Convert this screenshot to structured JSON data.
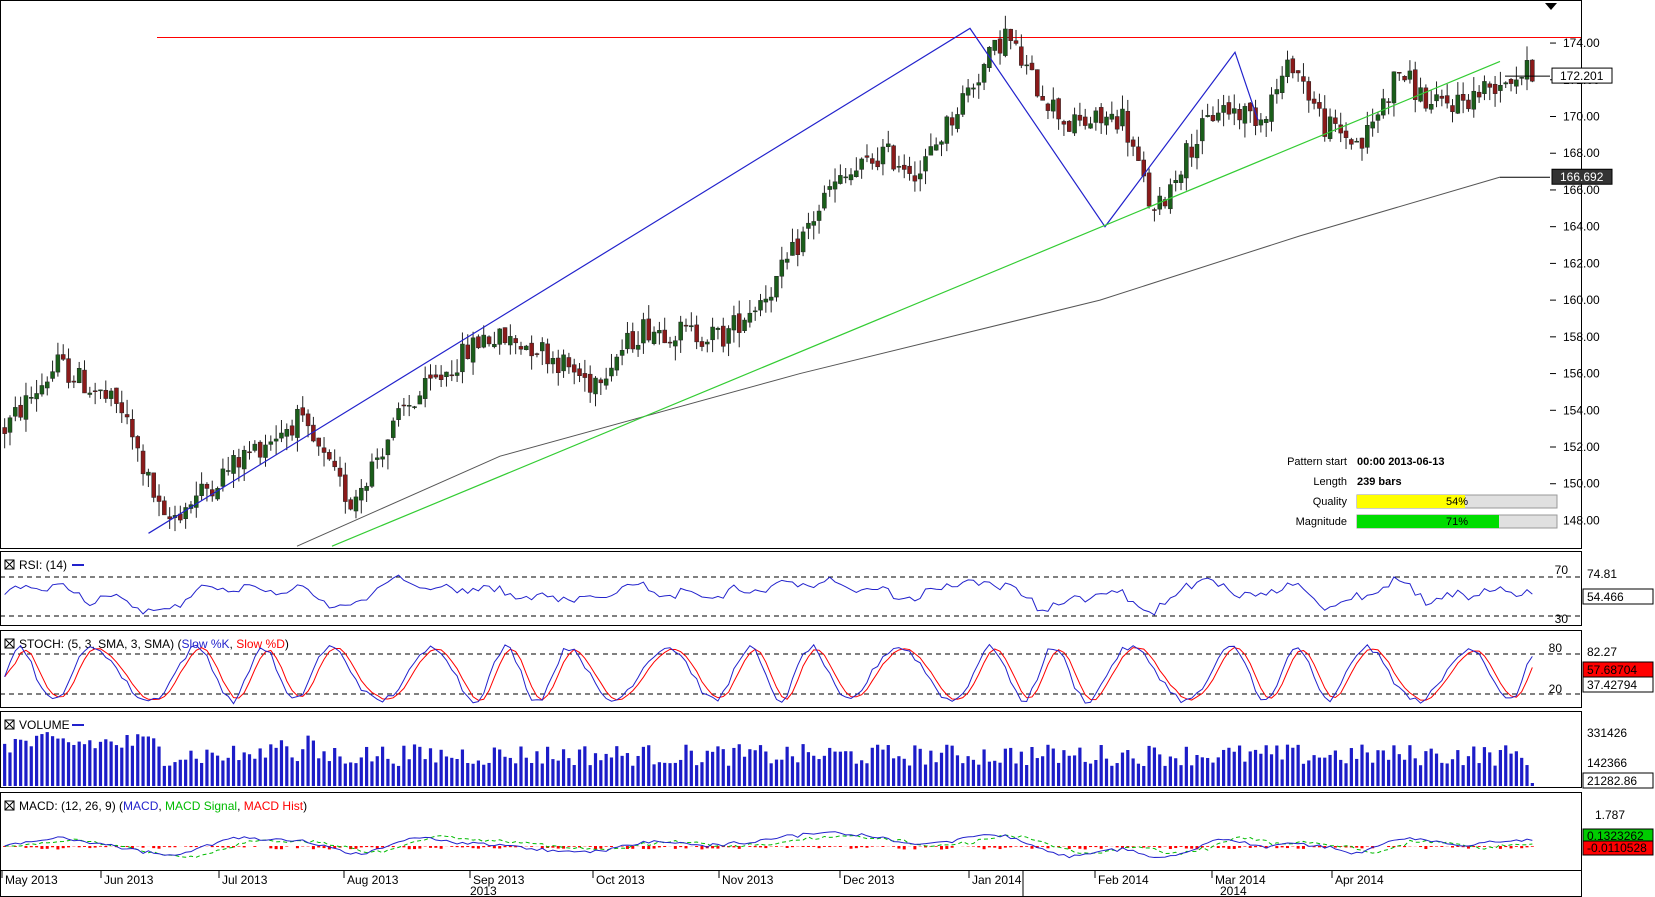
{
  "chart_data": {
    "type": "candlestick",
    "price": {
      "yticks": [
        "174.00",
        "172.00",
        "170.00",
        "168.00",
        "166.00",
        "164.00",
        "162.00",
        "160.00",
        "158.00",
        "156.00",
        "154.00",
        "152.00",
        "150.00",
        "148.00"
      ],
      "yrange": [
        146.5,
        175.8
      ],
      "current_label": "172.201",
      "ma_label": "166.692",
      "resistance": 174.3,
      "anchors": [
        {
          "i": 0,
          "p": 153.0
        },
        {
          "i": 10,
          "p": 156.5
        },
        {
          "i": 22,
          "p": 154.0
        },
        {
          "i": 30,
          "p": 147.8
        },
        {
          "i": 45,
          "p": 151.5
        },
        {
          "i": 55,
          "p": 153.5
        },
        {
          "i": 65,
          "p": 149.0
        },
        {
          "i": 75,
          "p": 154.0
        },
        {
          "i": 90,
          "p": 158.0
        },
        {
          "i": 100,
          "p": 157.5
        },
        {
          "i": 110,
          "p": 155.5
        },
        {
          "i": 120,
          "p": 158.5
        },
        {
          "i": 135,
          "p": 158.0
        },
        {
          "i": 145,
          "p": 161.0
        },
        {
          "i": 155,
          "p": 166.0
        },
        {
          "i": 165,
          "p": 168.0
        },
        {
          "i": 172,
          "p": 167.0
        },
        {
          "i": 180,
          "p": 171.0
        },
        {
          "i": 188,
          "p": 174.5
        },
        {
          "i": 193,
          "p": 172.0
        },
        {
          "i": 200,
          "p": 169.5
        },
        {
          "i": 210,
          "p": 170.0
        },
        {
          "i": 216,
          "p": 164.5
        },
        {
          "i": 222,
          "p": 168.0
        },
        {
          "i": 228,
          "p": 170.5
        },
        {
          "i": 236,
          "p": 170.0
        },
        {
          "i": 242,
          "p": 173.0
        },
        {
          "i": 248,
          "p": 169.5
        },
        {
          "i": 255,
          "p": 168.5
        },
        {
          "i": 262,
          "p": 172.5
        },
        {
          "i": 268,
          "p": 170.5
        },
        {
          "i": 275,
          "p": 171.0
        },
        {
          "i": 281,
          "p": 172.0
        },
        {
          "i": 287,
          "p": 172.5
        }
      ],
      "candle_count": 288,
      "pattern_lines": [
        [
          [
            148.5,
            147.3
          ],
          [
            970,
            174.8
          ],
          [
            1105,
            164.0
          ],
          [
            1235,
            173.5
          ],
          [
            1258,
            169.8
          ]
        ],
        [
          [
            332,
            146.6
          ],
          [
            1500,
            173.0
          ]
        ]
      ],
      "sma": [
        [
          297,
          146.6
        ],
        [
          500,
          151.5
        ],
        [
          800,
          156.0
        ],
        [
          1100,
          160.0
        ],
        [
          1300,
          163.5
        ],
        [
          1500,
          166.7
        ]
      ]
    },
    "rsi": {
      "title": "RSI: (14)",
      "ticks": [
        "70",
        "30"
      ],
      "right_labels": [
        "74.81",
        "54.466"
      ]
    },
    "stoch": {
      "title_prefix": "STOCH: (5, 3, SMA, 3, SMA) (",
      "k_label": "Slow %K",
      "sep": ", ",
      "d_label": "Slow %D",
      "title_suffix": ")",
      "ticks": [
        "80",
        "20"
      ],
      "right_labels": [
        "82.27",
        "57.68704",
        "37.42794"
      ]
    },
    "volume": {
      "title": "VOLUME",
      "right_labels": [
        "331426",
        "142366",
        "21282.86"
      ]
    },
    "macd": {
      "title_prefix": "MACD: (12, 26, 9) (",
      "macd_label": "MACD",
      "sep": ", ",
      "signal_label": "MACD Signal",
      "hist_label": "MACD Hist",
      "title_suffix": ")",
      "right_labels": [
        "1.787",
        "0.1323262",
        "-0.0110528"
      ]
    },
    "xaxis": {
      "months": [
        {
          "label": "May 2013",
          "x": 5
        },
        {
          "label": "Jun 2013",
          "x": 104
        },
        {
          "label": "Jul 2013",
          "x": 222
        },
        {
          "label": "Aug 2013",
          "x": 347
        },
        {
          "label": "Sep 2013",
          "x": 473
        },
        {
          "label": "Oct 2013",
          "x": 596
        },
        {
          "label": "Nov 2013",
          "x": 722
        },
        {
          "label": "Dec 2013",
          "x": 843
        },
        {
          "label": "Jan 2014",
          "x": 972
        },
        {
          "label": "Feb 2014",
          "x": 1098
        },
        {
          "label": "Mar 2014",
          "x": 1215
        },
        {
          "label": "Apr 2014",
          "x": 1335
        }
      ],
      "years": [
        {
          "label": "2013",
          "x": 470
        },
        {
          "label": "2014",
          "x": 1220
        }
      ]
    },
    "info": {
      "pattern_start_label": "Pattern start",
      "pattern_start_value": "00:00 2013-06-13",
      "length_label": "Length",
      "length_value": "239 bars",
      "quality_label": "Quality",
      "quality_value": "54%",
      "quality_pct": 54,
      "magnitude_label": "Magnitude",
      "magnitude_value": "71%",
      "magnitude_pct": 71
    },
    "colors": {
      "up": "#1a5e1a",
      "down": "#8b1a1a",
      "blue": "#2222cc",
      "green": "#33cc33",
      "red": "#ff0000",
      "quality": "#ffff00",
      "magnitude": "#00dd00"
    }
  }
}
